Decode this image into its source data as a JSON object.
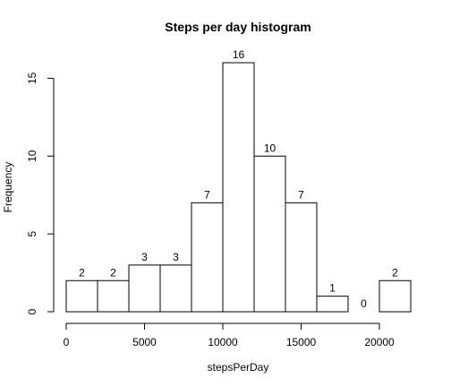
{
  "chart_data": {
    "type": "bar",
    "title": "Steps per day histogram",
    "xlabel": "stepsPerDay",
    "ylabel": "Frequency",
    "bin_edges": [
      0,
      2000,
      4000,
      6000,
      8000,
      10000,
      12000,
      14000,
      16000,
      18000,
      20000,
      22000
    ],
    "values": [
      2,
      2,
      3,
      3,
      7,
      16,
      10,
      7,
      1,
      0,
      2
    ],
    "bar_labels": [
      "2",
      "2",
      "3",
      "3",
      "7",
      "16",
      "10",
      "7",
      "1",
      "0",
      "2"
    ],
    "xlim": [
      0,
      22000
    ],
    "ylim": [
      0,
      16
    ],
    "x_ticks": [
      0,
      5000,
      10000,
      15000,
      20000
    ],
    "x_tick_labels": [
      "0",
      "5000",
      "10000",
      "15000",
      "20000"
    ],
    "y_ticks": [
      0,
      5,
      10,
      15
    ],
    "y_tick_labels": [
      "0",
      "5",
      "10",
      "15"
    ],
    "grid": false,
    "legend": "none"
  }
}
